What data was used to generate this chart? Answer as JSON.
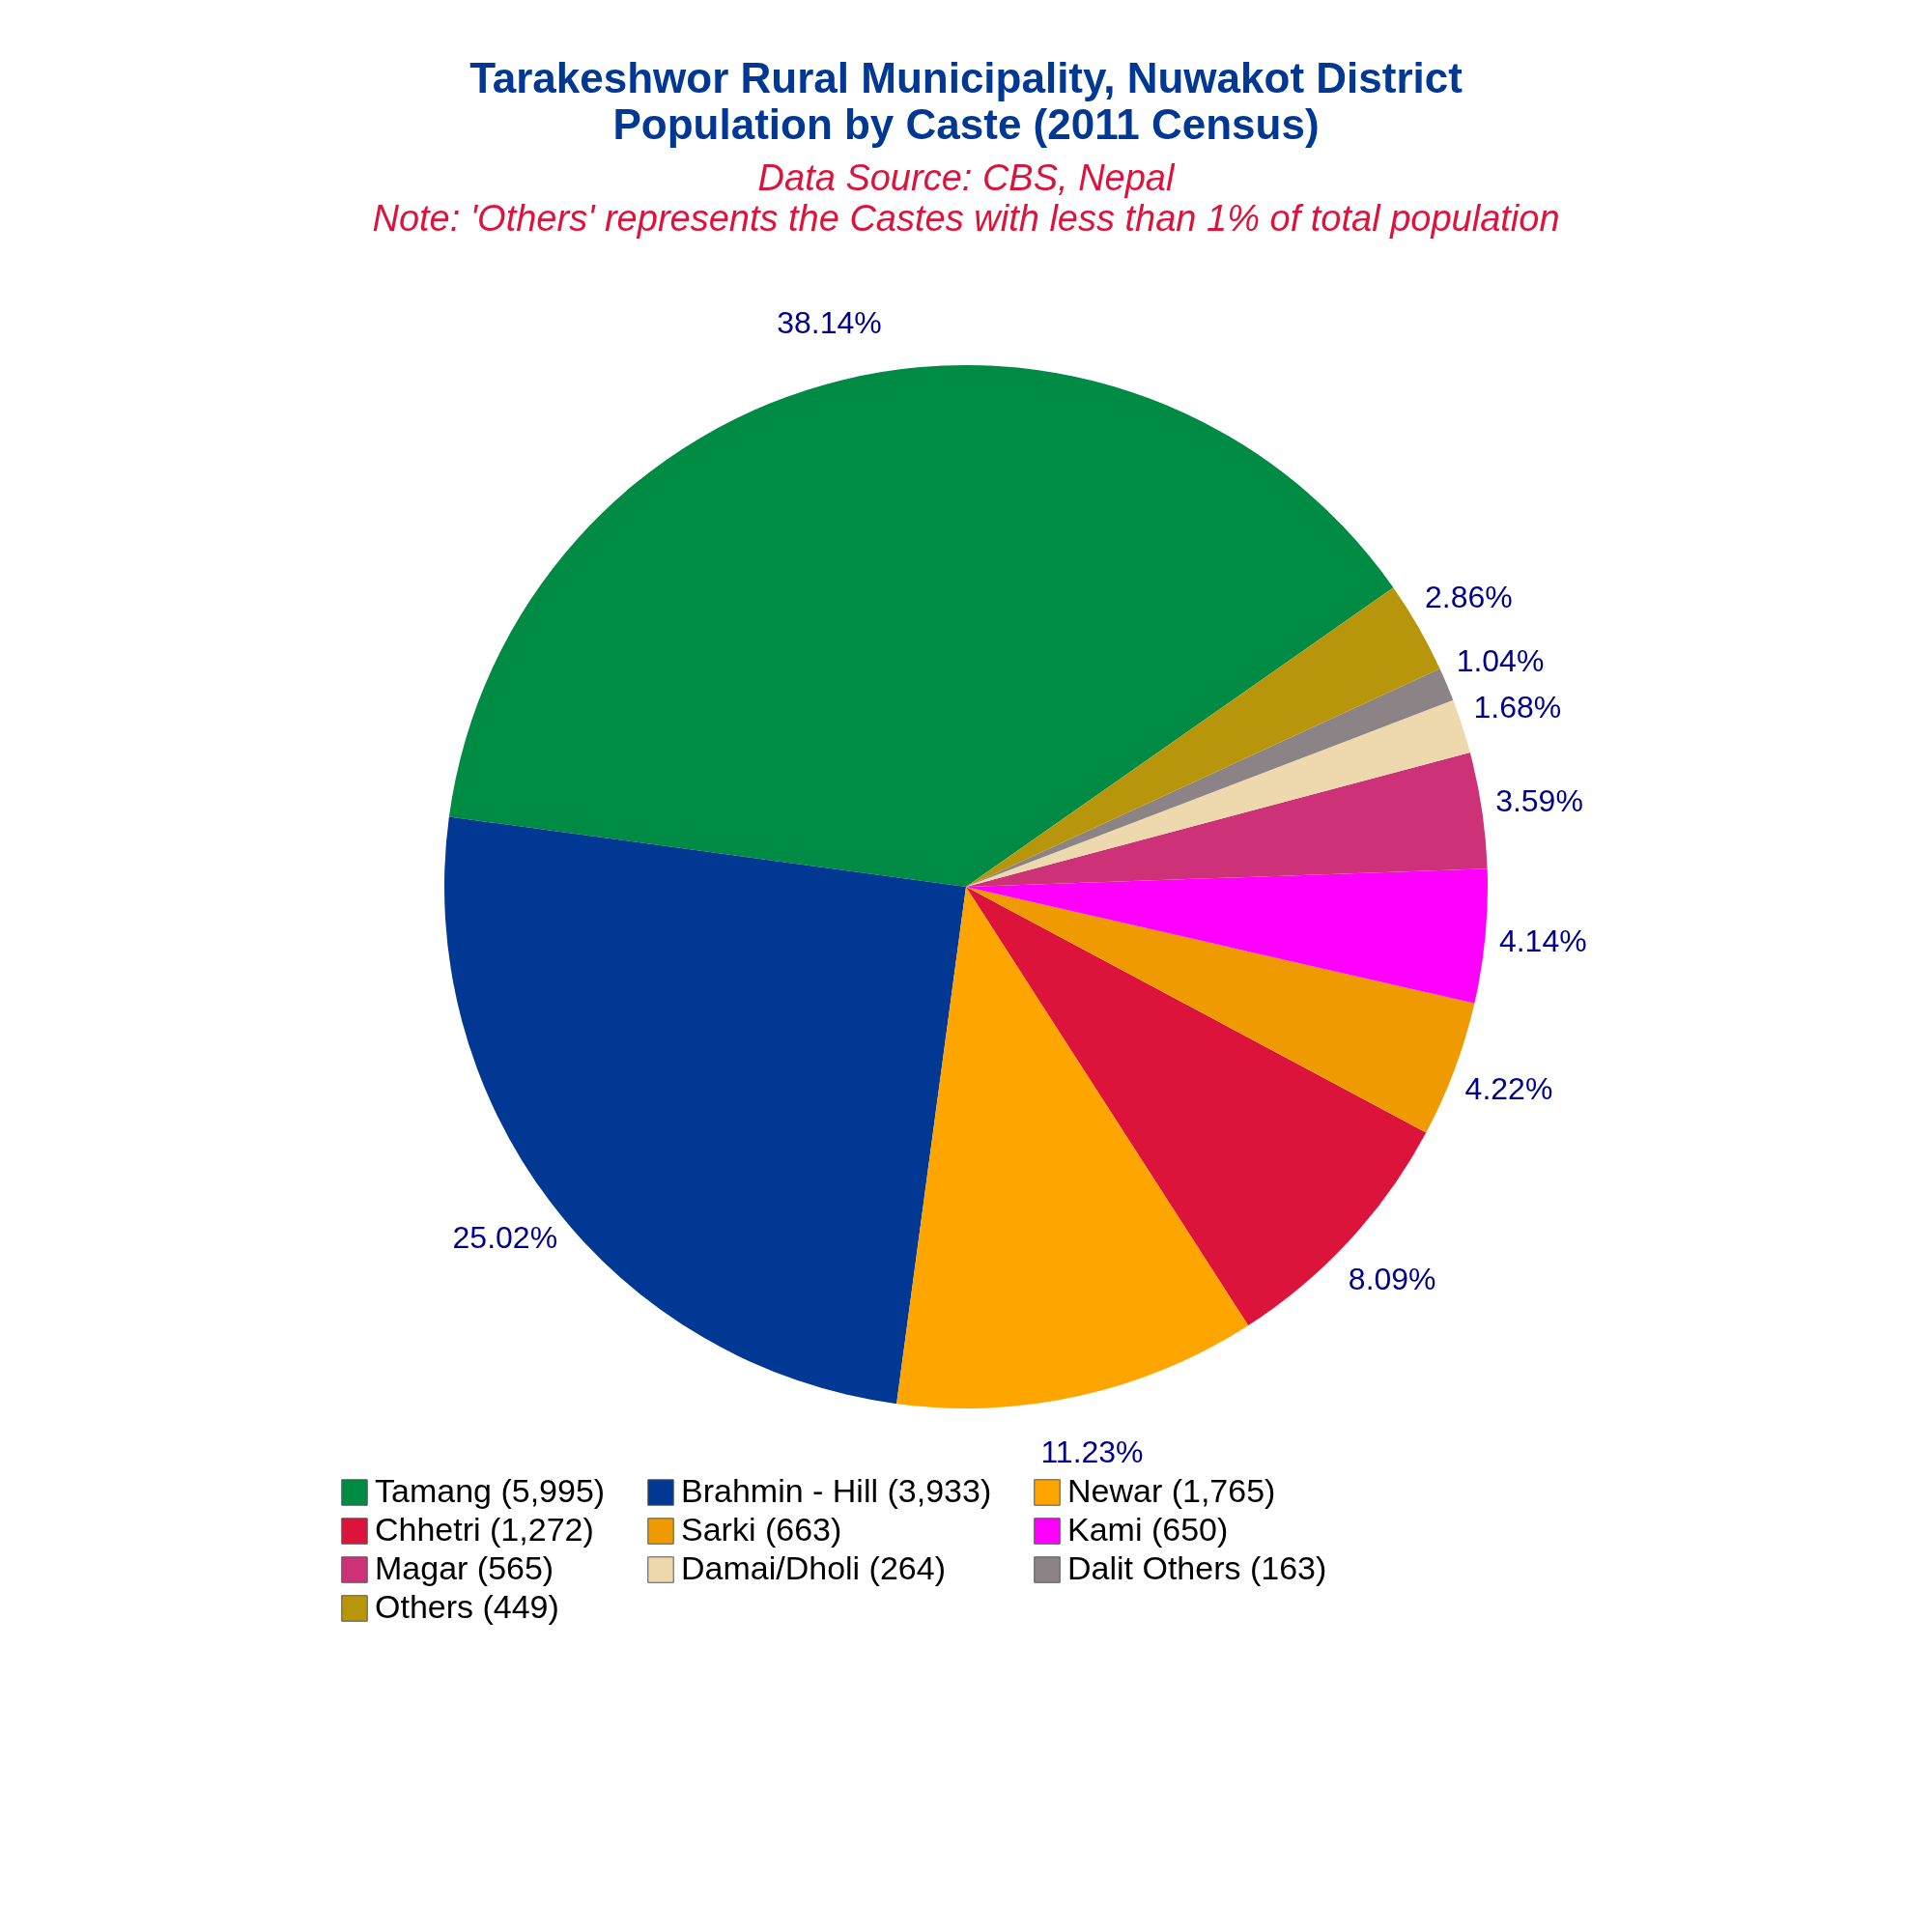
{
  "chart_data": {
    "type": "pie",
    "title": "Tarakeshwor Rural Municipality, Nuwakot District\nPopulation by Caste (2011 Census)",
    "subtitle": "Data Source: CBS, Nepal",
    "annotations": [
      "Note: 'Others' represents the Castes with less than 1% of total population"
    ],
    "categories": [
      "Tamang (5,995)",
      "Brahmin - Hill (3,933)",
      "Newar (1,765)",
      "Chhetri (1,272)",
      "Sarki (663)",
      "Kami (650)",
      "Magar (565)",
      "Damai/Dholi (264)",
      "Dalit Others (163)",
      "Others (449)"
    ],
    "values": [
      38.14,
      25.02,
      11.23,
      8.09,
      4.22,
      4.14,
      3.59,
      1.68,
      1.04,
      2.86
    ],
    "value_labels": [
      "38.14%",
      "25.02%",
      "11.23%",
      "8.09%",
      "4.22%",
      "4.14%",
      "3.59%",
      "1.68%",
      "1.04%",
      "2.86%"
    ],
    "colors": [
      "#008b45",
      "#003893",
      "#ffa500",
      "#dc143c",
      "#ee9a00",
      "#ff00ff",
      "#cd3278",
      "#eed8ae",
      "#8b8386",
      "#b8960b"
    ],
    "legend": "bottom"
  }
}
